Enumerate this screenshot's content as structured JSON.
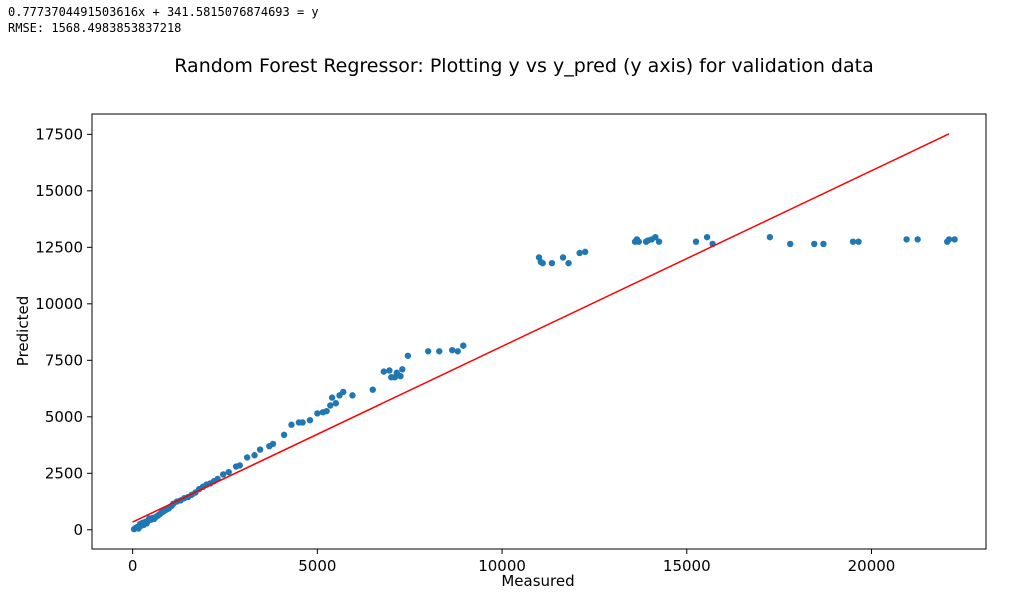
{
  "output": {
    "equation": "0.7773704491503616x + 341.5815076874693 = y",
    "rmse": "RMSE: 1568.4983853837218"
  },
  "chart_data": {
    "type": "scatter",
    "title": "Random Forest Regressor: Plotting y vs y_pred (y axis) for validation data",
    "xlabel": "Measured",
    "ylabel": "Predicted",
    "xlim": [
      -1100,
      23100
    ],
    "ylim": [
      -850,
      18400
    ],
    "xticks": [
      0,
      5000,
      10000,
      15000,
      20000
    ],
    "yticks": [
      0,
      2500,
      5000,
      7500,
      10000,
      12500,
      15000,
      17500
    ],
    "grid": false,
    "colors": {
      "points": "#1f77b4",
      "fit_line": "#ff0000"
    },
    "fit_line": {
      "slope": 0.7773704491503616,
      "intercept": 341.5815076874693,
      "x": [
        0,
        22100
      ]
    },
    "points": [
      [
        40,
        30
      ],
      [
        80,
        80
      ],
      [
        120,
        120
      ],
      [
        160,
        60
      ],
      [
        200,
        250
      ],
      [
        230,
        180
      ],
      [
        260,
        300
      ],
      [
        300,
        220
      ],
      [
        340,
        350
      ],
      [
        380,
        280
      ],
      [
        420,
        400
      ],
      [
        450,
        500
      ],
      [
        500,
        450
      ],
      [
        540,
        520
      ],
      [
        580,
        480
      ],
      [
        620,
        560
      ],
      [
        660,
        600
      ],
      [
        700,
        650
      ],
      [
        740,
        700
      ],
      [
        780,
        760
      ],
      [
        820,
        800
      ],
      [
        870,
        850
      ],
      [
        920,
        900
      ],
      [
        980,
        950
      ],
      [
        1050,
        1050
      ],
      [
        1100,
        1150
      ],
      [
        1200,
        1250
      ],
      [
        1300,
        1300
      ],
      [
        1400,
        1400
      ],
      [
        1500,
        1450
      ],
      [
        1600,
        1550
      ],
      [
        1700,
        1650
      ],
      [
        1800,
        1800
      ],
      [
        1900,
        1900
      ],
      [
        2000,
        2000
      ],
      [
        2100,
        2050
      ],
      [
        2200,
        2150
      ],
      [
        2300,
        2250
      ],
      [
        2450,
        2450
      ],
      [
        2600,
        2550
      ],
      [
        2800,
        2800
      ],
      [
        2900,
        2850
      ],
      [
        3100,
        3200
      ],
      [
        3300,
        3300
      ],
      [
        3450,
        3550
      ],
      [
        3700,
        3700
      ],
      [
        3800,
        3800
      ],
      [
        4100,
        4200
      ],
      [
        4300,
        4650
      ],
      [
        4500,
        4750
      ],
      [
        4600,
        4750
      ],
      [
        4800,
        4850
      ],
      [
        5000,
        5150
      ],
      [
        5150,
        5200
      ],
      [
        5250,
        5250
      ],
      [
        5350,
        5500
      ],
      [
        5400,
        5850
      ],
      [
        5500,
        5600
      ],
      [
        5600,
        5950
      ],
      [
        5700,
        6100
      ],
      [
        5950,
        5950
      ],
      [
        6500,
        6200
      ],
      [
        6800,
        7000
      ],
      [
        6950,
        7050
      ],
      [
        7000,
        6750
      ],
      [
        7100,
        6750
      ],
      [
        7150,
        6950
      ],
      [
        7250,
        6800
      ],
      [
        7300,
        7100
      ],
      [
        7450,
        7700
      ],
      [
        8000,
        7900
      ],
      [
        8300,
        7900
      ],
      [
        8650,
        7950
      ],
      [
        8800,
        7900
      ],
      [
        8950,
        8150
      ],
      [
        11000,
        12050
      ],
      [
        11050,
        11850
      ],
      [
        11100,
        11800
      ],
      [
        11350,
        11800
      ],
      [
        11650,
        12050
      ],
      [
        11800,
        11800
      ],
      [
        12100,
        12250
      ],
      [
        12250,
        12300
      ],
      [
        13600,
        12750
      ],
      [
        13650,
        12850
      ],
      [
        13700,
        12750
      ],
      [
        13900,
        12750
      ],
      [
        13950,
        12800
      ],
      [
        14050,
        12850
      ],
      [
        14150,
        12950
      ],
      [
        14250,
        12750
      ],
      [
        15250,
        12750
      ],
      [
        15550,
        12950
      ],
      [
        15700,
        12650
      ],
      [
        17250,
        12950
      ],
      [
        17800,
        12650
      ],
      [
        18450,
        12650
      ],
      [
        18700,
        12650
      ],
      [
        19500,
        12750
      ],
      [
        19650,
        12750
      ],
      [
        20950,
        12850
      ],
      [
        21250,
        12850
      ],
      [
        22050,
        12750
      ],
      [
        22100,
        12850
      ],
      [
        22250,
        12850
      ]
    ]
  }
}
